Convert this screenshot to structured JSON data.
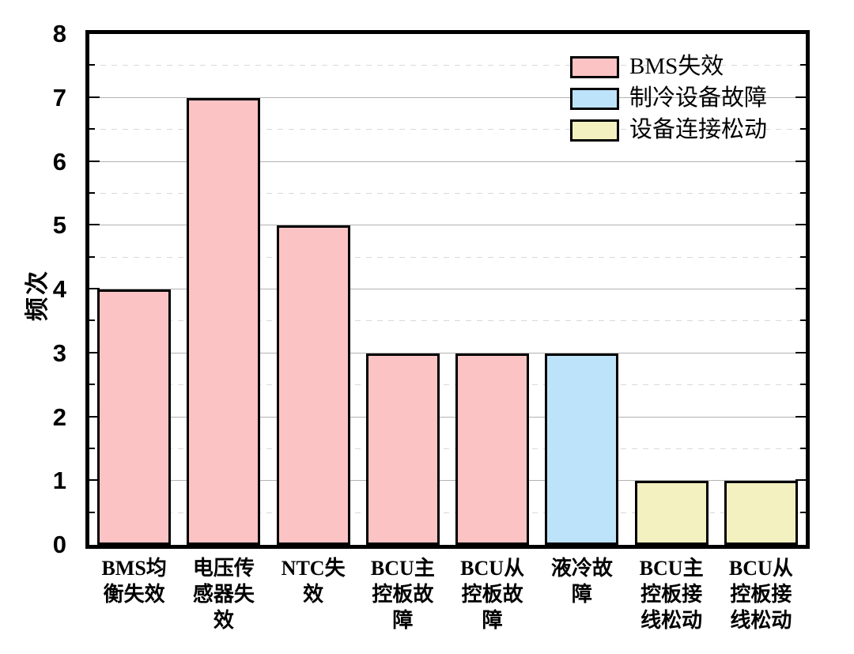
{
  "chart_data": {
    "type": "bar",
    "title": "",
    "xlabel": "",
    "ylabel": "频次",
    "ylim": [
      0,
      8
    ],
    "yticks": [
      "0",
      "1",
      "2",
      "3",
      "4",
      "5",
      "6",
      "7",
      "8"
    ],
    "major_tick_interval": 1,
    "minor_tick_interval": 0.5,
    "grid": "horizontal: solid gray lines at integers, dashed light-gray lines at half-integers",
    "legend_position": "top-right inside plot",
    "categories": [
      "BMS均衡失效",
      "电压传感器失效",
      "NTC失效",
      "BCU主控板故障",
      "BCU从控板故障",
      "液冷故障",
      "BCU主控板接线松动",
      "BCU从控板接线松动"
    ],
    "categories_display": [
      "BMS均\n衡失效",
      "电压传\n感器失\n效",
      "NTC失\n效",
      "BCU主\n控板故\n障",
      "BCU从\n控板故\n障",
      "液冷故\n障",
      "BCU主\n控板接\n线松动",
      "BCU从\n控板接\n线松动"
    ],
    "values": [
      4,
      7,
      5,
      3,
      3,
      3,
      1,
      1
    ],
    "bar_series": [
      "BMS失效",
      "BMS失效",
      "BMS失效",
      "BMS失效",
      "BMS失效",
      "制冷设备故障",
      "设备连接松动",
      "设备连接松动"
    ],
    "legend": [
      {
        "label": "BMS失效",
        "color": "#FBC3C3"
      },
      {
        "label": "制冷设备故障",
        "color": "#BDE3FA"
      },
      {
        "label": "设备连接松动",
        "color": "#F4F1C1"
      }
    ],
    "colors": {
      "bar_border": "#000000",
      "axis_frame": "#000000",
      "grid_major": "#b2b2b2",
      "grid_minor": "#d8d8d8",
      "background": "#ffffff"
    }
  }
}
